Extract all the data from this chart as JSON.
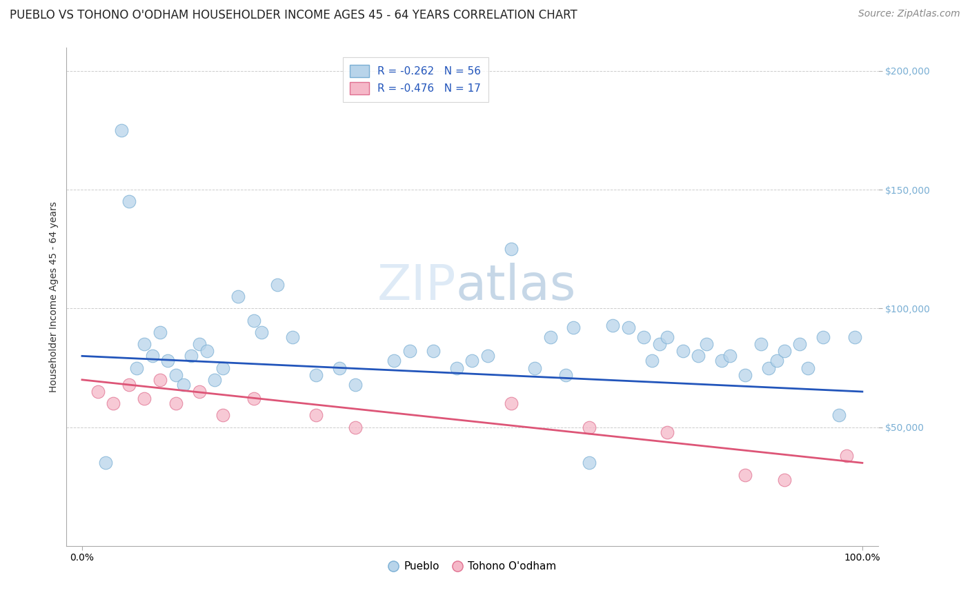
{
  "title": "PUEBLO VS TOHONO O'ODHAM HOUSEHOLDER INCOME AGES 45 - 64 YEARS CORRELATION CHART",
  "source": "Source: ZipAtlas.com",
  "ylabel": "Householder Income Ages 45 - 64 years",
  "xlim": [
    -2,
    102
  ],
  "ylim": [
    0,
    210000
  ],
  "yticks": [
    50000,
    100000,
    150000,
    200000
  ],
  "ytick_labels": [
    "$50,000",
    "$100,000",
    "$150,000",
    "$200,000"
  ],
  "xtick_labels": [
    "0.0%",
    "100.0%"
  ],
  "bg_color": "#ffffff",
  "grid_color": "#cccccc",
  "pueblo_color": "#b8d4ea",
  "pueblo_edge_color": "#7aafd4",
  "tohono_color": "#f5b8c8",
  "tohono_edge_color": "#e07090",
  "blue_line_color": "#2255bb",
  "pink_line_color": "#dd5577",
  "legend_R_pueblo": "R = -0.262",
  "legend_N_pueblo": "N = 56",
  "legend_R_tohono": "R = -0.476",
  "legend_N_tohono": "N = 17",
  "legend_label_pueblo": "Pueblo",
  "legend_label_tohono": "Tohono O'odham",
  "watermark_zip": "ZIP",
  "watermark_atlas": "atlas",
  "pueblo_x": [
    3,
    5,
    6,
    7,
    8,
    9,
    10,
    11,
    12,
    13,
    14,
    15,
    16,
    17,
    18,
    20,
    22,
    23,
    25,
    27,
    30,
    33,
    35,
    40,
    42,
    45,
    48,
    50,
    52,
    55,
    58,
    60,
    62,
    63,
    65,
    68,
    70,
    72,
    73,
    74,
    75,
    77,
    79,
    80,
    82,
    83,
    85,
    87,
    88,
    89,
    90,
    92,
    93,
    95,
    97,
    99
  ],
  "pueblo_y": [
    35000,
    175000,
    145000,
    75000,
    85000,
    80000,
    90000,
    78000,
    72000,
    68000,
    80000,
    85000,
    82000,
    70000,
    75000,
    105000,
    95000,
    90000,
    110000,
    88000,
    72000,
    75000,
    68000,
    78000,
    82000,
    82000,
    75000,
    78000,
    80000,
    125000,
    75000,
    88000,
    72000,
    92000,
    35000,
    93000,
    92000,
    88000,
    78000,
    85000,
    88000,
    82000,
    80000,
    85000,
    78000,
    80000,
    72000,
    85000,
    75000,
    78000,
    82000,
    85000,
    75000,
    88000,
    55000,
    88000
  ],
  "tohono_x": [
    2,
    4,
    6,
    8,
    10,
    12,
    15,
    18,
    22,
    30,
    35,
    55,
    65,
    75,
    85,
    90,
    98
  ],
  "tohono_y": [
    65000,
    60000,
    68000,
    62000,
    70000,
    60000,
    65000,
    55000,
    62000,
    55000,
    50000,
    60000,
    50000,
    48000,
    30000,
    28000,
    38000
  ],
  "title_fontsize": 12,
  "axis_label_fontsize": 10,
  "tick_fontsize": 10,
  "legend_fontsize": 11,
  "source_fontsize": 10,
  "dot_size": 180,
  "dot_alpha": 0.75
}
